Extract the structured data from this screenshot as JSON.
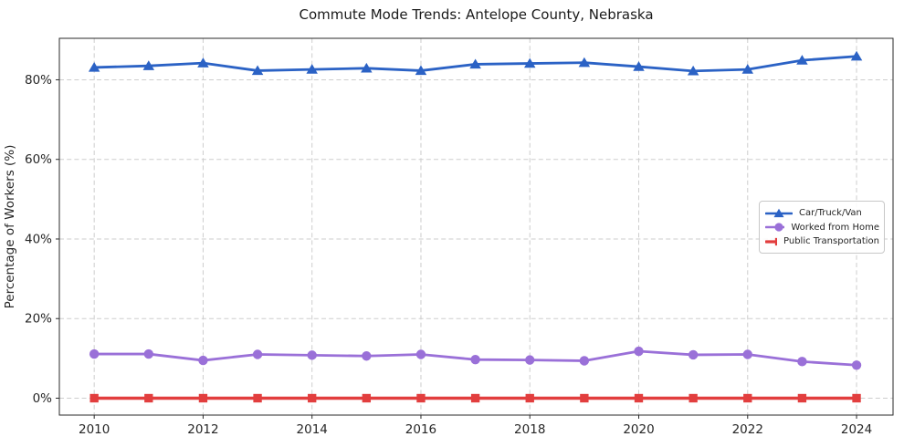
{
  "chart_data": {
    "type": "line",
    "title": "Commute Mode Trends: Antelope County, Nebraska",
    "xlabel": "",
    "ylabel": "Percentage of Workers (%)",
    "x": [
      2010,
      2011,
      2012,
      2013,
      2014,
      2015,
      2016,
      2017,
      2018,
      2019,
      2020,
      2021,
      2022,
      2023,
      2024
    ],
    "xticks": [
      2010,
      2012,
      2014,
      2016,
      2018,
      2020,
      2022,
      2024
    ],
    "ytick_values": [
      0,
      20,
      40,
      60,
      80
    ],
    "yticks": [
      "0%",
      "20%",
      "40%",
      "60%",
      "80%"
    ],
    "xlim": [
      2009.36,
      2024.67
    ],
    "ylim": [
      -4.24,
      90.42
    ],
    "grid": true,
    "legend_position": "center right",
    "series": [
      {
        "name": "Car/Truck/Van",
        "color": "#2b62c5",
        "marker": "triangle",
        "values": [
          83.1,
          83.5,
          84.2,
          82.3,
          82.6,
          82.9,
          82.3,
          83.9,
          84.1,
          84.3,
          83.3,
          82.2,
          82.6,
          84.9,
          85.9
        ]
      },
      {
        "name": "Worked from Home",
        "color": "#9a70d8",
        "marker": "circle",
        "values": [
          11.1,
          11.1,
          9.5,
          11.0,
          10.8,
          10.6,
          11.0,
          9.7,
          9.6,
          9.4,
          11.8,
          10.9,
          11.0,
          9.2,
          8.3
        ]
      },
      {
        "name": "Public Transportation",
        "color": "#e23e3e",
        "marker": "square",
        "values": [
          0.0,
          0.0,
          0.0,
          0.0,
          0.0,
          0.0,
          0.0,
          0.0,
          0.0,
          0.0,
          0.0,
          0.0,
          0.0,
          0.0,
          0.0
        ]
      }
    ]
  }
}
